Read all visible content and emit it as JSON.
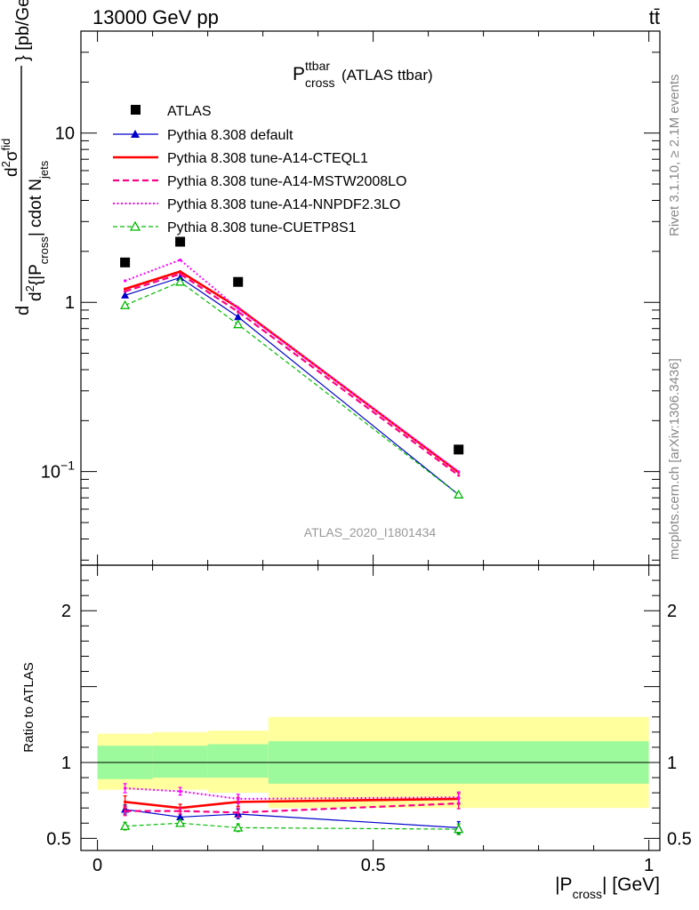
{
  "header": {
    "energy_label": "13000 GeV pp",
    "process_label": "tt̄"
  },
  "side_labels": {
    "rivet": "Rivet 3.1.10, ≥ 2.1M events",
    "mcplots": "mcplots.cern.ch [arXiv:1306.3436]"
  },
  "chart_data": {
    "type": "line",
    "analysis_id": "ATLAS_2020_I1801434",
    "title": {
      "main": "P",
      "sup": "ttbar",
      "sub": "cross",
      "suffix": "(ATLAS ttbar)"
    },
    "xlabel": {
      "pre": "|P",
      "sub": "cross",
      "post": "| [GeV]"
    },
    "ylabel": {
      "num_prefix": "d",
      "num_sup": "2",
      "num_main": "σ",
      "num_sub": "fid",
      "den_prefix": "d",
      "den_sup": "2",
      "den_main": "{|P",
      "den_sub": "cross",
      "den_mid": "| cdot N",
      "den_sub2": "jets",
      "close": "} [pb/GeV]"
    },
    "ratio_ylabel": "Ratio to ATLAS",
    "xlim": [
      -0.03,
      1.02
    ],
    "ylim": [
      0.028,
      40
    ],
    "yscale": "log",
    "ratio_ylim": [
      0.42,
      2.3
    ],
    "x_ticks": [
      {
        "value": 0,
        "label": "0"
      },
      {
        "value": 0.5,
        "label": "0.5"
      },
      {
        "value": 1,
        "label": "1"
      }
    ],
    "y_ticks": [
      {
        "value": 0.1,
        "base": "10",
        "exp": "−1"
      },
      {
        "value": 1,
        "base": "1",
        "exp": ""
      },
      {
        "value": 10,
        "base": "10",
        "exp": ""
      }
    ],
    "ratio_y_ticks": [
      {
        "value": 0.5,
        "label": "0.5"
      },
      {
        "value": 1,
        "label": "1"
      },
      {
        "value": 2,
        "label": "2"
      }
    ],
    "x": [
      0.05,
      0.15,
      0.255,
      0.655
    ],
    "bin_edges": [
      0,
      0.1,
      0.2,
      0.31,
      1.0
    ],
    "data": {
      "name": "ATLAS",
      "values": [
        1.72,
        2.28,
        1.32,
        0.135
      ],
      "band_inner": [
        [
          0.89,
          1.11
        ],
        [
          0.9,
          1.11
        ],
        [
          0.9,
          1.12
        ],
        [
          0.86,
          1.14
        ]
      ],
      "band_outer": [
        [
          0.82,
          1.19
        ],
        [
          0.82,
          1.2
        ],
        [
          0.8,
          1.21
        ],
        [
          0.7,
          1.3
        ]
      ],
      "band_inner_color": "#9cfa9c",
      "band_outer_color": "#ffff9e"
    },
    "series": [
      {
        "name": "Pythia 8.308 default",
        "color": "#0000cc",
        "dash": "",
        "width": 1.2,
        "marker": "triangle-filled",
        "values": [
          1.1,
          1.4,
          0.82,
          0.073
        ],
        "ratio": [
          0.69,
          0.64,
          0.66,
          0.57
        ],
        "ratio_err": [
          0.03,
          0.02,
          0.03,
          0.04
        ]
      },
      {
        "name": "Pythia 8.308 tune-A14-CTEQL1",
        "color": "#ff0000",
        "dash": "",
        "width": 2.6,
        "marker": "none",
        "values": [
          1.2,
          1.52,
          0.93,
          0.099
        ],
        "ratio": [
          0.74,
          0.7,
          0.74,
          0.76
        ],
        "ratio_err": [
          0.04,
          0.025,
          0.03,
          0.035
        ]
      },
      {
        "name": "Pythia 8.308 tune-A14-MSTW2008LO",
        "color": "#ff0088",
        "dash": "7,4",
        "width": 2.2,
        "marker": "none",
        "values": [
          1.16,
          1.47,
          0.88,
          0.095
        ],
        "ratio": [
          0.68,
          0.68,
          0.67,
          0.73
        ],
        "ratio_err": [
          0.03,
          0.02,
          0.03,
          0.035
        ]
      },
      {
        "name": "Pythia 8.308 tune-A14-NNPDF2.3LO",
        "color": "#ff00ff",
        "dash": "2,2.5",
        "width": 2.0,
        "marker": "none",
        "values": [
          1.34,
          1.78,
          0.92,
          0.1
        ],
        "ratio": [
          0.83,
          0.81,
          0.76,
          0.77
        ],
        "ratio_err": [
          0.03,
          0.025,
          0.03,
          0.035
        ]
      },
      {
        "name": "Pythia 8.308 tune-CUETP8S1",
        "color": "#00bb00",
        "dash": "5,3",
        "width": 1.2,
        "marker": "triangle-open",
        "values": [
          0.96,
          1.32,
          0.74,
          0.073
        ],
        "ratio": [
          0.58,
          0.6,
          0.57,
          0.56
        ],
        "ratio_err": [
          0.025,
          0.02,
          0.025,
          0.035
        ]
      }
    ]
  }
}
